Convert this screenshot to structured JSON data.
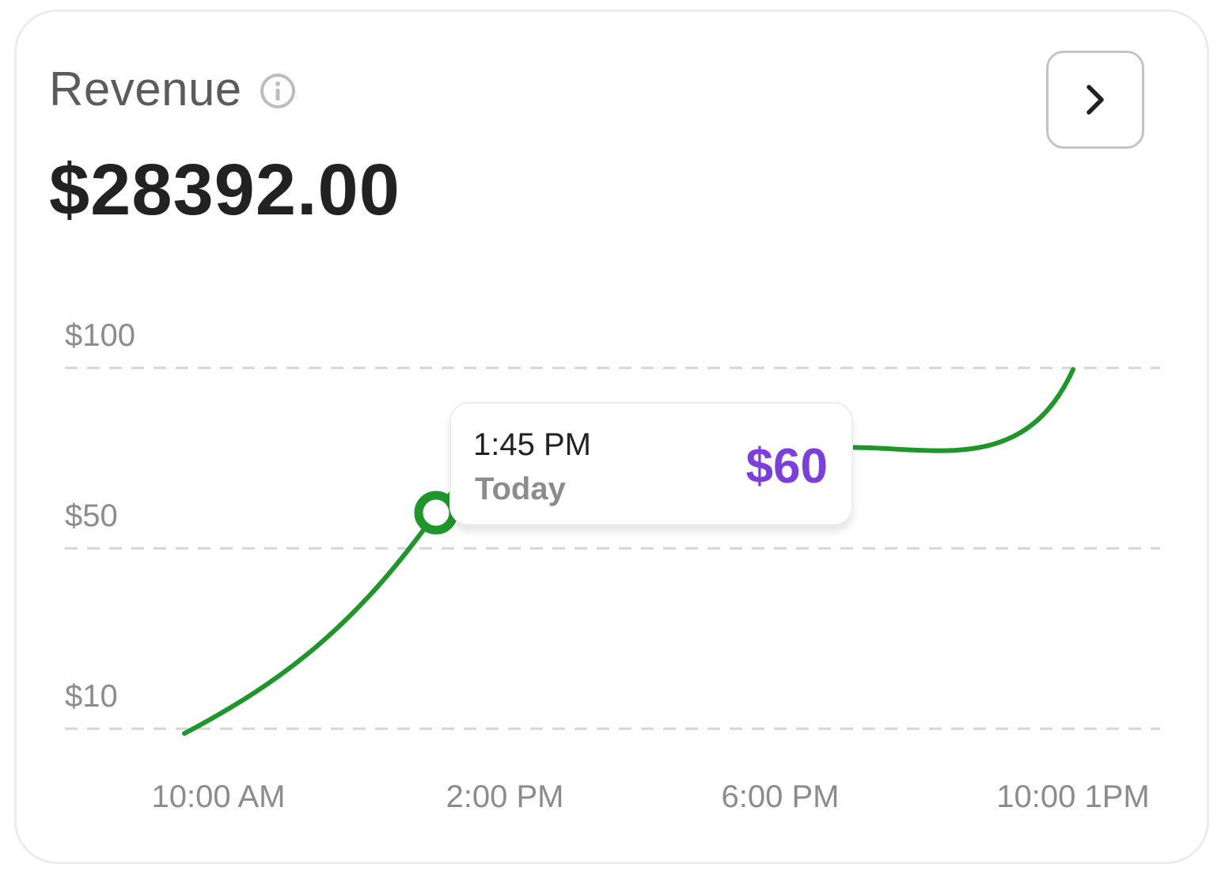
{
  "card": {
    "title": "Revenue",
    "amount": "$28392.00"
  },
  "icons": {
    "info": "info-circle-icon",
    "next": "chevron-right-icon"
  },
  "colors": {
    "line": "#1e962a",
    "tooltip_value": "#7b3fe0",
    "title": "#5b5b5b",
    "amount": "#222222",
    "tick": "#8c8c8c"
  },
  "tooltip": {
    "time": "1:45 PM",
    "day": "Today",
    "value": "$60"
  },
  "chart_data": {
    "type": "line",
    "y_ticks": [
      "$100",
      "$50",
      "$10"
    ],
    "x_ticks": [
      "10:00 AM",
      "2:00 PM",
      "6:00 PM",
      "10:00 1PM"
    ],
    "grid": true,
    "series": [
      {
        "values": [
          {
            "x": "10:00 AM",
            "y": 10
          },
          {
            "x": "1:45 PM",
            "y": 60
          },
          {
            "x": "6:00 PM",
            "y": 74
          },
          {
            "x": "10:00 PM",
            "y": 100
          }
        ]
      }
    ],
    "highlighted_point": {
      "x": "1:45 PM",
      "y": 60
    }
  }
}
